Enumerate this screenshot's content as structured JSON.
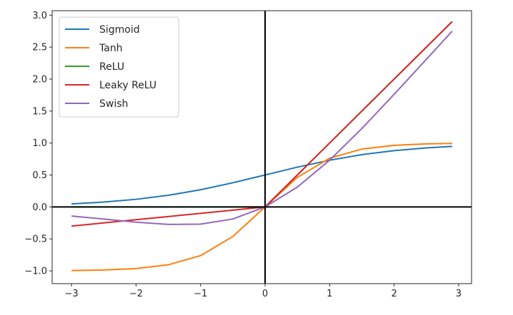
{
  "chart_data": {
    "type": "line",
    "title": "",
    "xlabel": "",
    "ylabel": "",
    "xlim": [
      -3.3,
      3.2
    ],
    "ylim": [
      -1.2,
      3.07
    ],
    "x_ticks": [
      -3,
      -2,
      -1,
      0,
      1,
      2,
      3
    ],
    "x_tick_labels": [
      "−3",
      "−2",
      "−1",
      "0",
      "1",
      "2",
      "3"
    ],
    "y_ticks": [
      -1.0,
      -0.5,
      0.0,
      0.5,
      1.0,
      1.5,
      2.0,
      2.5,
      3.0
    ],
    "y_tick_labels": [
      "−1.0",
      "−0.5",
      "0.0",
      "0.5",
      "1.0",
      "1.5",
      "2.0",
      "2.5",
      "3.0"
    ],
    "grid": false,
    "legend": "top-left",
    "reference_lines": {
      "x": 0,
      "y": 0,
      "color": "#000000"
    },
    "x": [
      -3.0,
      -2.5,
      -2.0,
      -1.5,
      -1.0,
      -0.5,
      0.0,
      0.5,
      1.0,
      1.5,
      2.0,
      2.5,
      2.9
    ],
    "series": [
      {
        "name": "Sigmoid",
        "color": "#1f77b4",
        "values": [
          0.047,
          0.076,
          0.119,
          0.182,
          0.269,
          0.378,
          0.5,
          0.622,
          0.731,
          0.818,
          0.881,
          0.924,
          0.948
        ]
      },
      {
        "name": "Tanh",
        "color": "#ff7f0e",
        "values": [
          -0.995,
          -0.987,
          -0.964,
          -0.905,
          -0.762,
          -0.462,
          0.0,
          0.462,
          0.762,
          0.905,
          0.964,
          0.987,
          0.994
        ]
      },
      {
        "name": "ReLU",
        "color": "#2ca02c",
        "values": [
          0,
          0,
          0,
          0,
          0,
          0,
          0,
          0.5,
          1.0,
          1.5,
          2.0,
          2.5,
          2.9
        ]
      },
      {
        "name": "Leaky ReLU",
        "color": "#d62728",
        "values": [
          -0.3,
          -0.25,
          -0.2,
          -0.15,
          -0.1,
          -0.05,
          0,
          0.5,
          1.0,
          1.5,
          2.0,
          2.5,
          2.9
        ]
      },
      {
        "name": "Swish",
        "color": "#9467bd",
        "values": [
          -0.142,
          -0.19,
          -0.238,
          -0.273,
          -0.269,
          -0.189,
          0.0,
          0.311,
          0.731,
          1.227,
          1.762,
          2.31,
          2.75
        ]
      }
    ]
  }
}
